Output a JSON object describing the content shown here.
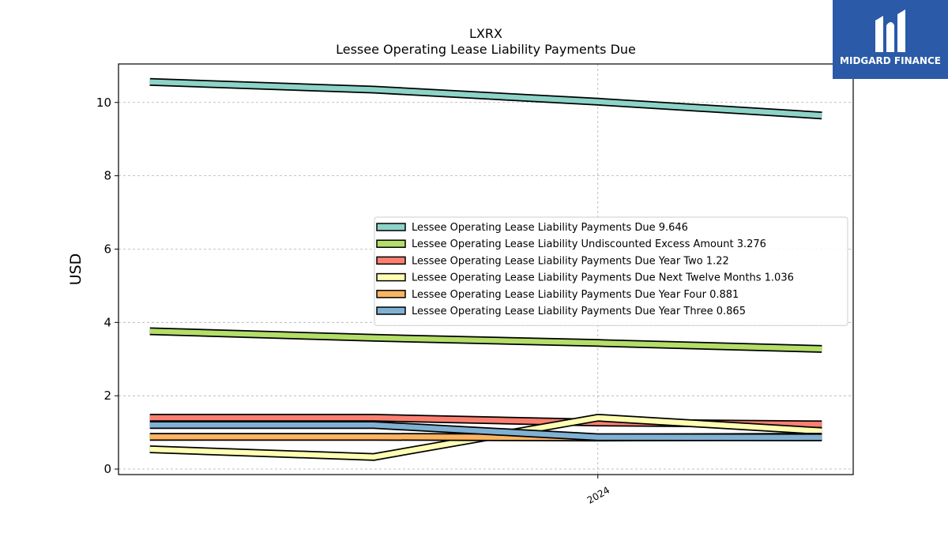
{
  "chart_data": {
    "type": "line",
    "title": "LXRX",
    "subtitle": "Lessee Operating Lease Liability Payments Due",
    "ylabel": "USD",
    "xlabel": "",
    "ylim": [
      -0.15,
      11.05
    ],
    "yticks": [
      0,
      2,
      4,
      6,
      8,
      10
    ],
    "x": [
      0,
      1,
      2,
      3
    ],
    "xlim": [
      -0.14,
      3.14
    ],
    "xticks": [
      {
        "pos": 2,
        "label": "2024"
      }
    ],
    "grid": true,
    "legend_position": "center-right",
    "series": [
      {
        "name": "Lessee Operating Lease Liability Payments Due",
        "legend_value": "9.646",
        "color": "#8dd3c7",
        "values": [
          10.56,
          10.35,
          10.02,
          9.646
        ]
      },
      {
        "name": "Lessee Operating Lease Liability Undiscounted Excess Amount",
        "legend_value": "3.276",
        "color": "#b3de69",
        "values": [
          3.76,
          3.58,
          3.44,
          3.276
        ]
      },
      {
        "name": "Lessee Operating Lease Liability Payments Due Year Two",
        "legend_value": "1.22",
        "color": "#fb8072",
        "values": [
          1.4,
          1.4,
          1.27,
          1.22
        ]
      },
      {
        "name": "Lessee Operating Lease Liability Payments Due Next Twelve Months",
        "legend_value": "1.036",
        "color": "#ffffb3",
        "values": [
          0.54,
          0.33,
          1.4,
          1.036
        ]
      },
      {
        "name": "Lessee Operating Lease Liability Payments Due Year Four",
        "legend_value": "0.881",
        "color": "#fdb462",
        "values": [
          0.88,
          0.88,
          0.86,
          0.881
        ]
      },
      {
        "name": "Lessee Operating Lease Liability Payments Due Year Three",
        "legend_value": "0.865",
        "color": "#80b1d3",
        "values": [
          1.2,
          1.2,
          0.87,
          0.865
        ]
      }
    ]
  },
  "logo": {
    "text": "MIDGARD FINANCE",
    "icon": "midgard-logo-icon"
  }
}
